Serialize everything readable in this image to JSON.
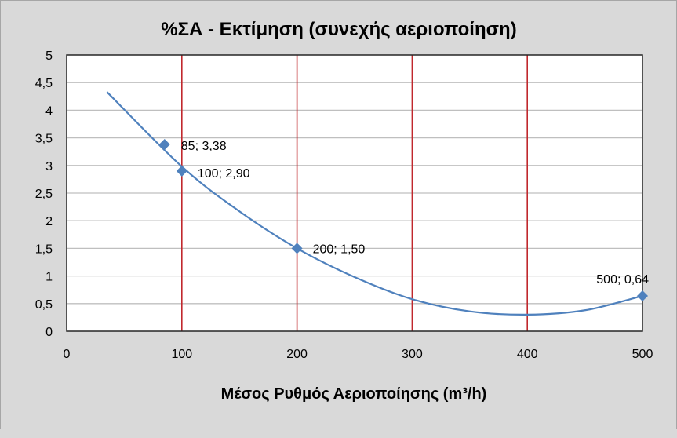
{
  "chart_data": {
    "type": "scatter",
    "title": "%ΣΑ - Εκτίμηση (συνεχής αεριοποίηση)",
    "xlabel": "Μέσος Ρυθμός Αεριοποίησης (m³/h)",
    "ylabel": "",
    "xlim": [
      0,
      500
    ],
    "ylim": [
      0,
      5
    ],
    "xticks": [
      0,
      100,
      200,
      300,
      400,
      500
    ],
    "yticks": [
      "0",
      "0,5",
      "1",
      "1,5",
      "2",
      "2,5",
      "3",
      "3,5",
      "4",
      "4,5",
      "5"
    ],
    "grid": {
      "horizontal": true,
      "vertical": true,
      "vertical_color": "#c0282d"
    },
    "series": [
      {
        "points": [
          {
            "x": 85,
            "y": 3.38,
            "label": "85; 3,38"
          },
          {
            "x": 100,
            "y": 2.9,
            "label": "100; 2,90"
          },
          {
            "x": 200,
            "y": 1.5,
            "label": "200; 1,50"
          },
          {
            "x": 500,
            "y": 0.64,
            "label": "500; 0,64"
          }
        ],
        "marker": "diamond",
        "color": "#4f81bd"
      }
    ],
    "trendline": {
      "type": "polynomial",
      "x_range": [
        35,
        500
      ],
      "points": [
        {
          "x": 35,
          "y": 4.33
        },
        {
          "x": 100,
          "y": 2.98
        },
        {
          "x": 150,
          "y": 2.17
        },
        {
          "x": 200,
          "y": 1.5
        },
        {
          "x": 250,
          "y": 0.98
        },
        {
          "x": 300,
          "y": 0.58
        },
        {
          "x": 350,
          "y": 0.36
        },
        {
          "x": 400,
          "y": 0.3
        },
        {
          "x": 450,
          "y": 0.38
        },
        {
          "x": 500,
          "y": 0.64
        }
      ],
      "color": "#4f81bd"
    },
    "colors": {
      "background": "#d9d9d9",
      "plot_background": "#ffffff",
      "gridline": "#bfbfbf",
      "vertical_grid": "#c0282d",
      "series": "#4f81bd"
    }
  }
}
